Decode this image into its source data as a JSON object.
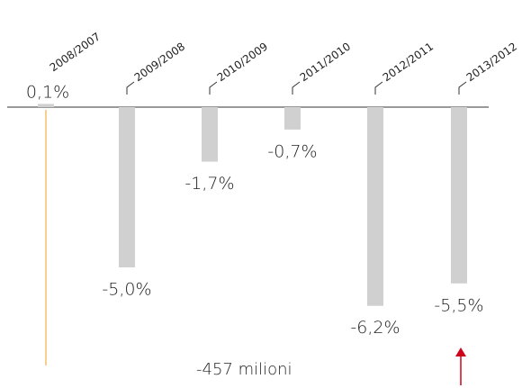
{
  "chart_data": {
    "type": "bar",
    "categories": [
      "2008/2007",
      "2009/2008",
      "2010/2009",
      "2011/2010",
      "2012/2011",
      "2013/2012"
    ],
    "values": [
      0.1,
      -5.0,
      -1.7,
      -0.7,
      -6.2,
      -5.5
    ],
    "value_labels": [
      "0,1%",
      "-5,0%",
      "-1,7%",
      "-0,7%",
      "-6,2%",
      "-5,5%"
    ],
    "color": "#d0d0d0",
    "ylim": [
      -8,
      0.5
    ],
    "annotations": [
      "-457 milioni"
    ],
    "annotation_color": "#e8742c"
  }
}
